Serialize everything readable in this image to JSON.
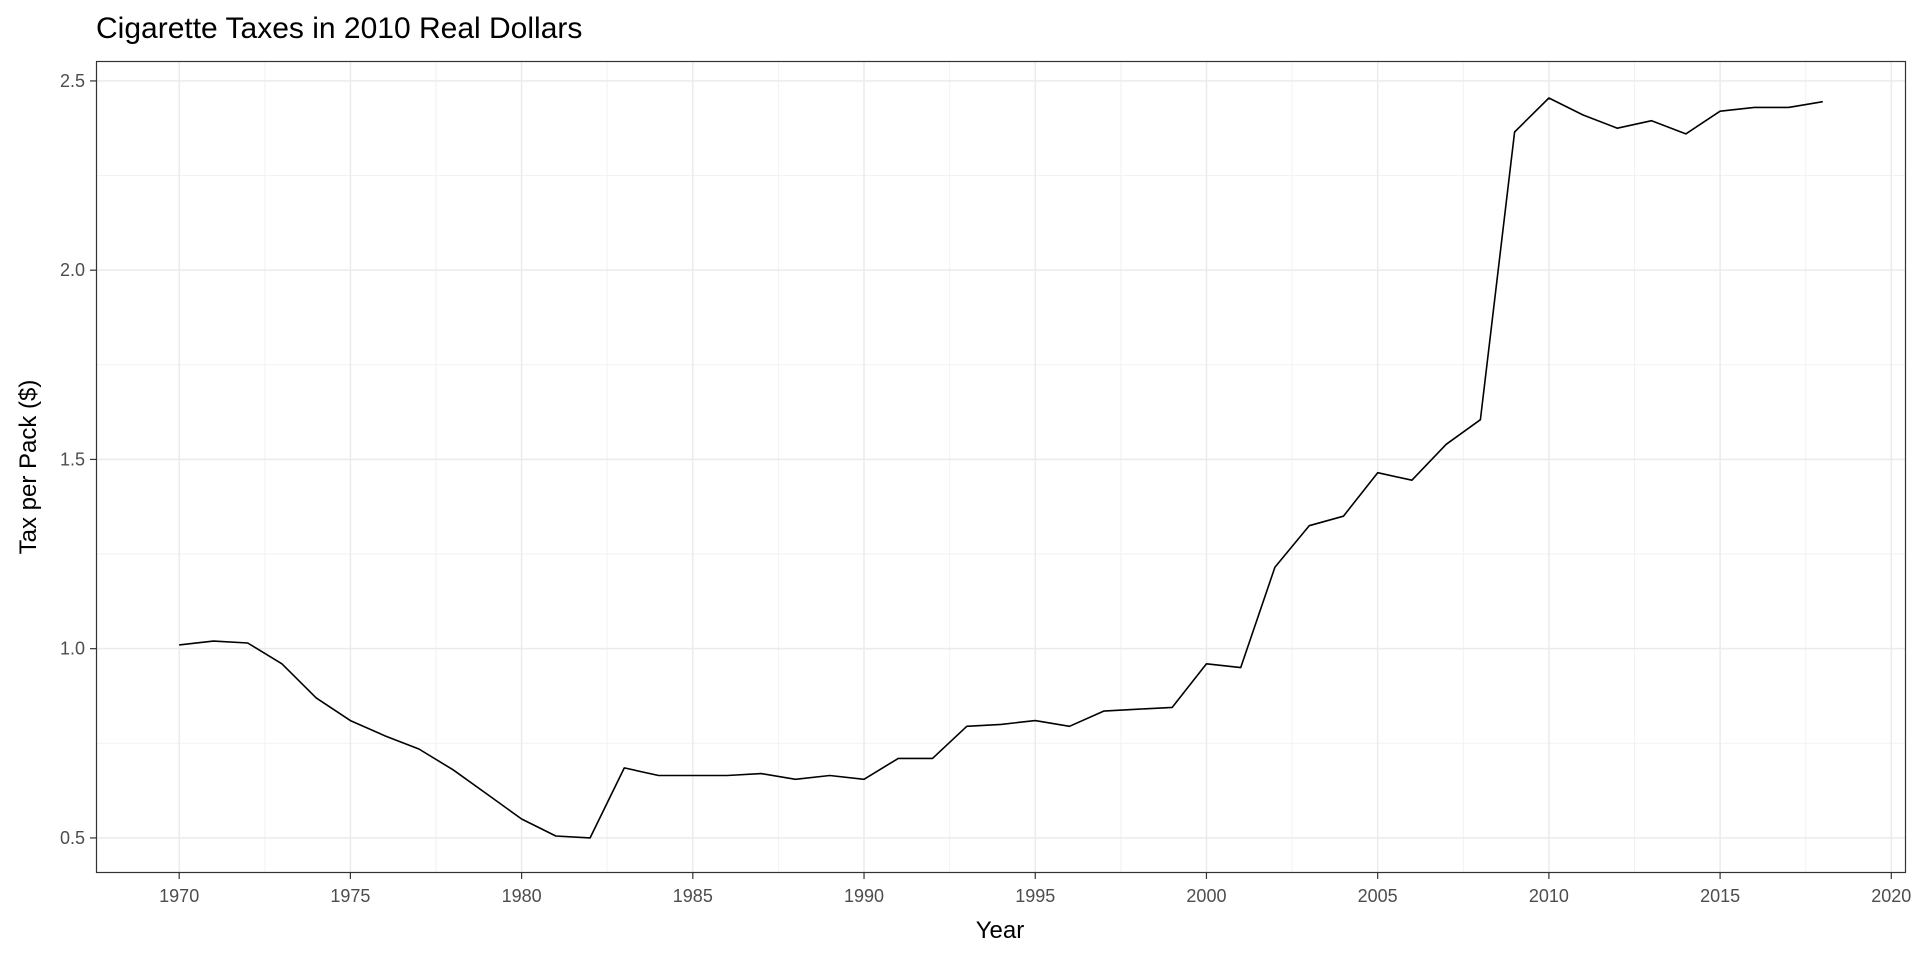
{
  "chart_data": {
    "type": "line",
    "title": "Cigarette Taxes in 2010 Real Dollars",
    "xlabel": "Year",
    "ylabel": "Tax per Pack ($)",
    "xlim": [
      1967.6,
      2020.4
    ],
    "ylim": [
      0.41,
      2.55
    ],
    "x_ticks": [
      "1970",
      "1975",
      "1980",
      "1985",
      "1990",
      "1995",
      "2000",
      "2005",
      "2010",
      "2015",
      "2020"
    ],
    "y_ticks": [
      "0.5",
      "1.0",
      "1.5",
      "2.0",
      "2.5"
    ],
    "grid": true,
    "series": [
      {
        "line_color": "#000000",
        "x": [
          1970,
          1971,
          1972,
          1973,
          1974,
          1975,
          1976,
          1977,
          1978,
          1979,
          1980,
          1981,
          1982,
          1983,
          1984,
          1985,
          1986,
          1987,
          1988,
          1989,
          1990,
          1991,
          1992,
          1993,
          1994,
          1995,
          1996,
          1997,
          1998,
          1999,
          2000,
          2001,
          2002,
          2003,
          2004,
          2005,
          2006,
          2007,
          2008,
          2009,
          2010,
          2011,
          2012,
          2013,
          2014,
          2015,
          2016,
          2017,
          2018
        ],
        "y": [
          1.01,
          1.02,
          1.015,
          0.96,
          0.87,
          0.81,
          0.77,
          0.735,
          0.68,
          0.615,
          0.55,
          0.505,
          0.5,
          0.685,
          0.665,
          0.665,
          0.665,
          0.67,
          0.655,
          0.665,
          0.655,
          0.71,
          0.71,
          0.795,
          0.8,
          0.81,
          0.795,
          0.835,
          0.84,
          0.845,
          0.96,
          0.95,
          1.215,
          1.325,
          1.35,
          1.465,
          1.445,
          1.54,
          1.605,
          2.365,
          2.455,
          2.41,
          2.375,
          2.395,
          2.36,
          2.42,
          2.43,
          2.43,
          2.445
        ]
      }
    ]
  }
}
